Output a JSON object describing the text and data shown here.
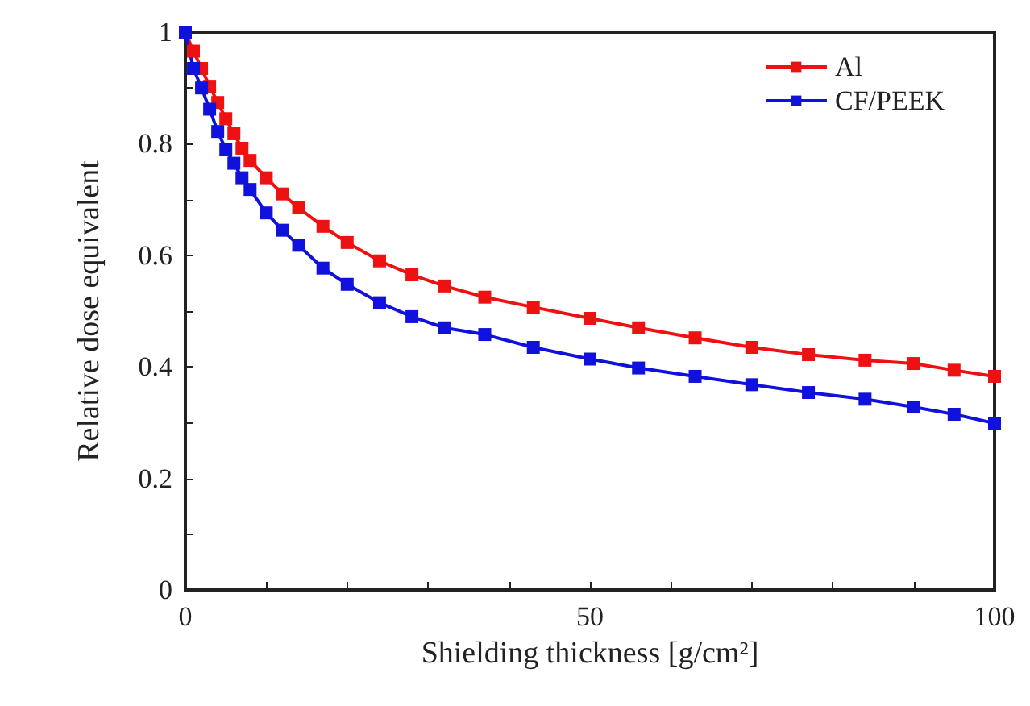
{
  "chart_data": {
    "type": "line",
    "xlabel": "Shielding thickness [g/cm²]",
    "ylabel": "Relative dose equivalent",
    "xlim": [
      0,
      100
    ],
    "xticks": [
      0,
      {
        "value": 10,
        "label": null
      },
      {
        "value": 20,
        "label": null
      },
      {
        "value": 30,
        "label": null
      },
      {
        "value": 40,
        "label": null
      },
      50,
      {
        "value": 60,
        "label": null
      },
      {
        "value": 70,
        "label": null
      },
      {
        "value": 80,
        "label": null
      },
      {
        "value": 90,
        "label": null
      },
      100
    ],
    "ylim": [
      0,
      1
    ],
    "yticks": [
      0,
      {
        "value": 0.1,
        "label": null
      },
      0.2,
      {
        "value": 0.3,
        "label": null
      },
      0.4,
      {
        "value": 0.5,
        "label": null
      },
      0.6,
      {
        "value": 0.7,
        "label": null
      },
      0.8,
      {
        "value": 0.9,
        "label": null
      },
      1
    ],
    "x": [
      0,
      1,
      2,
      3,
      4,
      5,
      6,
      7,
      8,
      10,
      12,
      14,
      17,
      20,
      24,
      28,
      32,
      37,
      43,
      50,
      56,
      63,
      70,
      77,
      84,
      90,
      95,
      100
    ],
    "series": [
      {
        "name": "Al",
        "color": "#ee1111",
        "values": [
          1,
          0.966,
          0.935,
          0.903,
          0.874,
          0.845,
          0.818,
          0.792,
          0.77,
          0.739,
          0.71,
          0.685,
          0.652,
          0.623,
          0.59,
          0.565,
          0.545,
          0.525,
          0.507,
          0.487,
          0.47,
          0.452,
          0.435,
          0.422,
          0.412,
          0.406,
          0.394,
          0.383
        ]
      },
      {
        "name": "CF/PEEK",
        "color": "#1111dd",
        "values": [
          1,
          0.935,
          0.9,
          0.862,
          0.822,
          0.79,
          0.765,
          0.739,
          0.718,
          0.676,
          0.645,
          0.618,
          0.577,
          0.548,
          0.515,
          0.49,
          0.47,
          0.458,
          0.435,
          0.414,
          0.398,
          0.383,
          0.368,
          0.354,
          0.342,
          0.328,
          0.315,
          0.299
        ]
      }
    ],
    "marker": "square",
    "line_style": "solid",
    "grid": false,
    "legend": "top right"
  }
}
